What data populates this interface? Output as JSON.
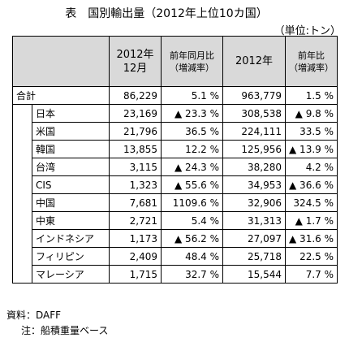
{
  "title": "表　国別輸出量（2012年上位10カ国）",
  "unit": "（単位:トン）",
  "header": {
    "col1": "2012年\n12月",
    "col2": "前年同月比\n（増減率）",
    "col3": "2012年",
    "col4": "前年比\n（増減率）"
  },
  "rows": [
    {
      "name": "合計",
      "month_qty": "86,229",
      "month_rate": "5.1 %",
      "year_qty": "963,779",
      "year_rate": "1.5 %"
    },
    {
      "name": "日本",
      "month_qty": "23,169",
      "month_rate": "▲ 23.3 %",
      "year_qty": "308,538",
      "year_rate": "▲ 9.8 %"
    },
    {
      "name": "米国",
      "month_qty": "21,796",
      "month_rate": "36.5 %",
      "year_qty": "224,111",
      "year_rate": "33.5 %"
    },
    {
      "name": "韓国",
      "month_qty": "13,855",
      "month_rate": "12.2 %",
      "year_qty": "125,956",
      "year_rate": "▲ 13.9 %"
    },
    {
      "name": "台湾",
      "month_qty": "3,115",
      "month_rate": "▲ 24.3 %",
      "year_qty": "38,280",
      "year_rate": "4.2 %"
    },
    {
      "name": "CIS",
      "month_qty": "1,323",
      "month_rate": "▲ 55.6 %",
      "year_qty": "34,953",
      "year_rate": "▲ 36.6 %"
    },
    {
      "name": "中国",
      "month_qty": "7,681",
      "month_rate": "1109.6 %",
      "year_qty": "32,906",
      "year_rate": "324.5 %"
    },
    {
      "name": "中東",
      "month_qty": "2,721",
      "month_rate": "5.4 %",
      "year_qty": "31,313",
      "year_rate": "▲ 1.7 %"
    },
    {
      "name": "インドネシア",
      "month_qty": "1,173",
      "month_rate": "▲ 56.2 %",
      "year_qty": "27,097",
      "year_rate": "▲ 31.6 %"
    },
    {
      "name": "フィリピン",
      "month_qty": "2,409",
      "month_rate": "48.4 %",
      "year_qty": "25,718",
      "year_rate": "22.5 %"
    },
    {
      "name": "マレーシア",
      "month_qty": "1,715",
      "month_rate": "32.7 %",
      "year_qty": "15,544",
      "year_rate": "7.7 %"
    }
  ],
  "footer": {
    "source": "資料：DAFF",
    "note": "注：船積重量ベース"
  }
}
